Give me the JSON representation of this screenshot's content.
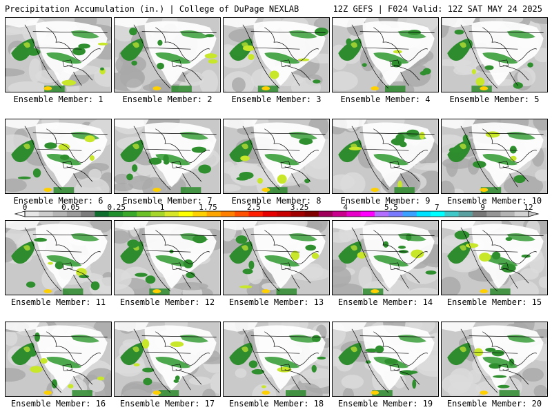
{
  "header": {
    "left": "Precipitation Accumulation (in.) | College of DuPage NEXLAB",
    "right": "12Z GEFS | F024 Valid: 12Z SAT MAY 24 2025"
  },
  "member_label_prefix": "Ensemble Member: ",
  "members": [
    1,
    2,
    3,
    4,
    5,
    6,
    7,
    8,
    9,
    10,
    11,
    12,
    13,
    14,
    15,
    16,
    17,
    18,
    19,
    20
  ],
  "colorbar": {
    "labels": [
      "0",
      "0.05",
      "0.25",
      "1",
      "1.75",
      "2.5",
      "3.25",
      "4",
      "5.5",
      "7",
      "9",
      "12"
    ],
    "colors": [
      "#e6e6e6",
      "#cccccc",
      "#b4b4b4",
      "#9b9b9b",
      "#7d7d7d",
      "#0f6e2e",
      "#1f8f2d",
      "#3aa82b",
      "#6cc128",
      "#a6d62a",
      "#d8e62a",
      "#ffff00",
      "#ffd000",
      "#ffa500",
      "#ff7f00",
      "#ff5000",
      "#ff1e00",
      "#e60000",
      "#c80000",
      "#a00000",
      "#800000",
      "#a0005a",
      "#c8008c",
      "#e600c8",
      "#ff00ff",
      "#b46eff",
      "#7a7aff",
      "#3ca0ff",
      "#00e0ff",
      "#00ffff",
      "#40c8c8",
      "#5aa0a0",
      "#787878",
      "#969696",
      "#b4b4b4",
      "#d2d2d2"
    ]
  }
}
